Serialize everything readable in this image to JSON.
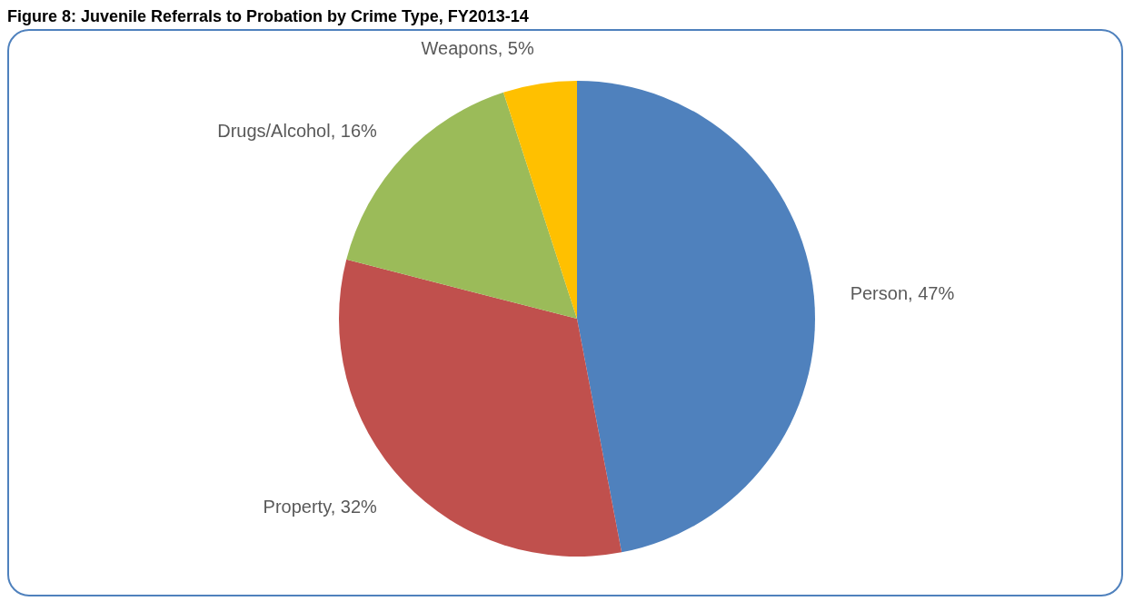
{
  "chart_data": {
    "type": "pie",
    "title": "Figure 8: Juvenile Referrals to Probation by Crime Type, FY2013-14",
    "categories": [
      "Person",
      "Property",
      "Drugs/Alcohol",
      "Weapons"
    ],
    "values": [
      47,
      32,
      16,
      5
    ],
    "value_labels": [
      "47%",
      "32%",
      "16%",
      "5%"
    ],
    "colors": [
      "#4f81bd",
      "#c0504d",
      "#9bbb59",
      "#ffc000"
    ],
    "legend": false
  }
}
